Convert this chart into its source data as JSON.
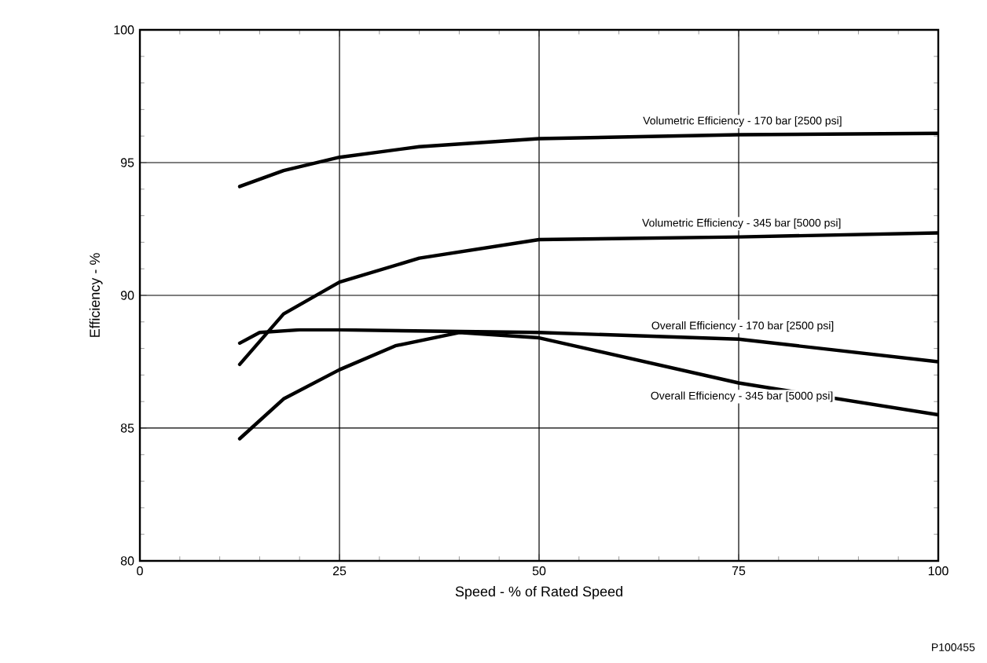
{
  "chart_data": {
    "type": "line",
    "xlabel": "Speed - % of Rated Speed",
    "ylabel": "Efficiency - %",
    "xlim": [
      0,
      100
    ],
    "ylim": [
      80,
      100
    ],
    "xticks": [
      0,
      25,
      50,
      75,
      100
    ],
    "yticks": [
      80,
      85,
      90,
      95,
      100
    ],
    "grid": true,
    "annotations": [
      "P100455"
    ],
    "series": [
      {
        "name": "Volumetric Efficiency - 170 bar [2500 psi]",
        "color": "#000000",
        "x": [
          12.5,
          18,
          25,
          35,
          50,
          75,
          100
        ],
        "values": [
          94.1,
          94.7,
          95.2,
          95.6,
          95.9,
          96.05,
          96.1
        ]
      },
      {
        "name": "Volumetric Efficiency - 345 bar [5000 psi]",
        "color": "#000000",
        "x": [
          12.5,
          18,
          25,
          35,
          50,
          75,
          100
        ],
        "values": [
          87.4,
          89.3,
          90.5,
          91.4,
          92.1,
          92.2,
          92.35
        ]
      },
      {
        "name": "Overall Efficiency - 170 bar [2500 psi]",
        "color": "#000000",
        "x": [
          12.5,
          15,
          20,
          25,
          50,
          75,
          100
        ],
        "values": [
          88.2,
          88.6,
          88.7,
          88.7,
          88.6,
          88.35,
          87.5
        ]
      },
      {
        "name": "Overall Efficiency - 345 bar [5000 psi]",
        "color": "#000000",
        "x": [
          12.5,
          18,
          25,
          32,
          40,
          50,
          75,
          100
        ],
        "values": [
          84.6,
          86.1,
          87.2,
          88.1,
          88.6,
          88.4,
          86.7,
          85.5
        ]
      }
    ]
  }
}
